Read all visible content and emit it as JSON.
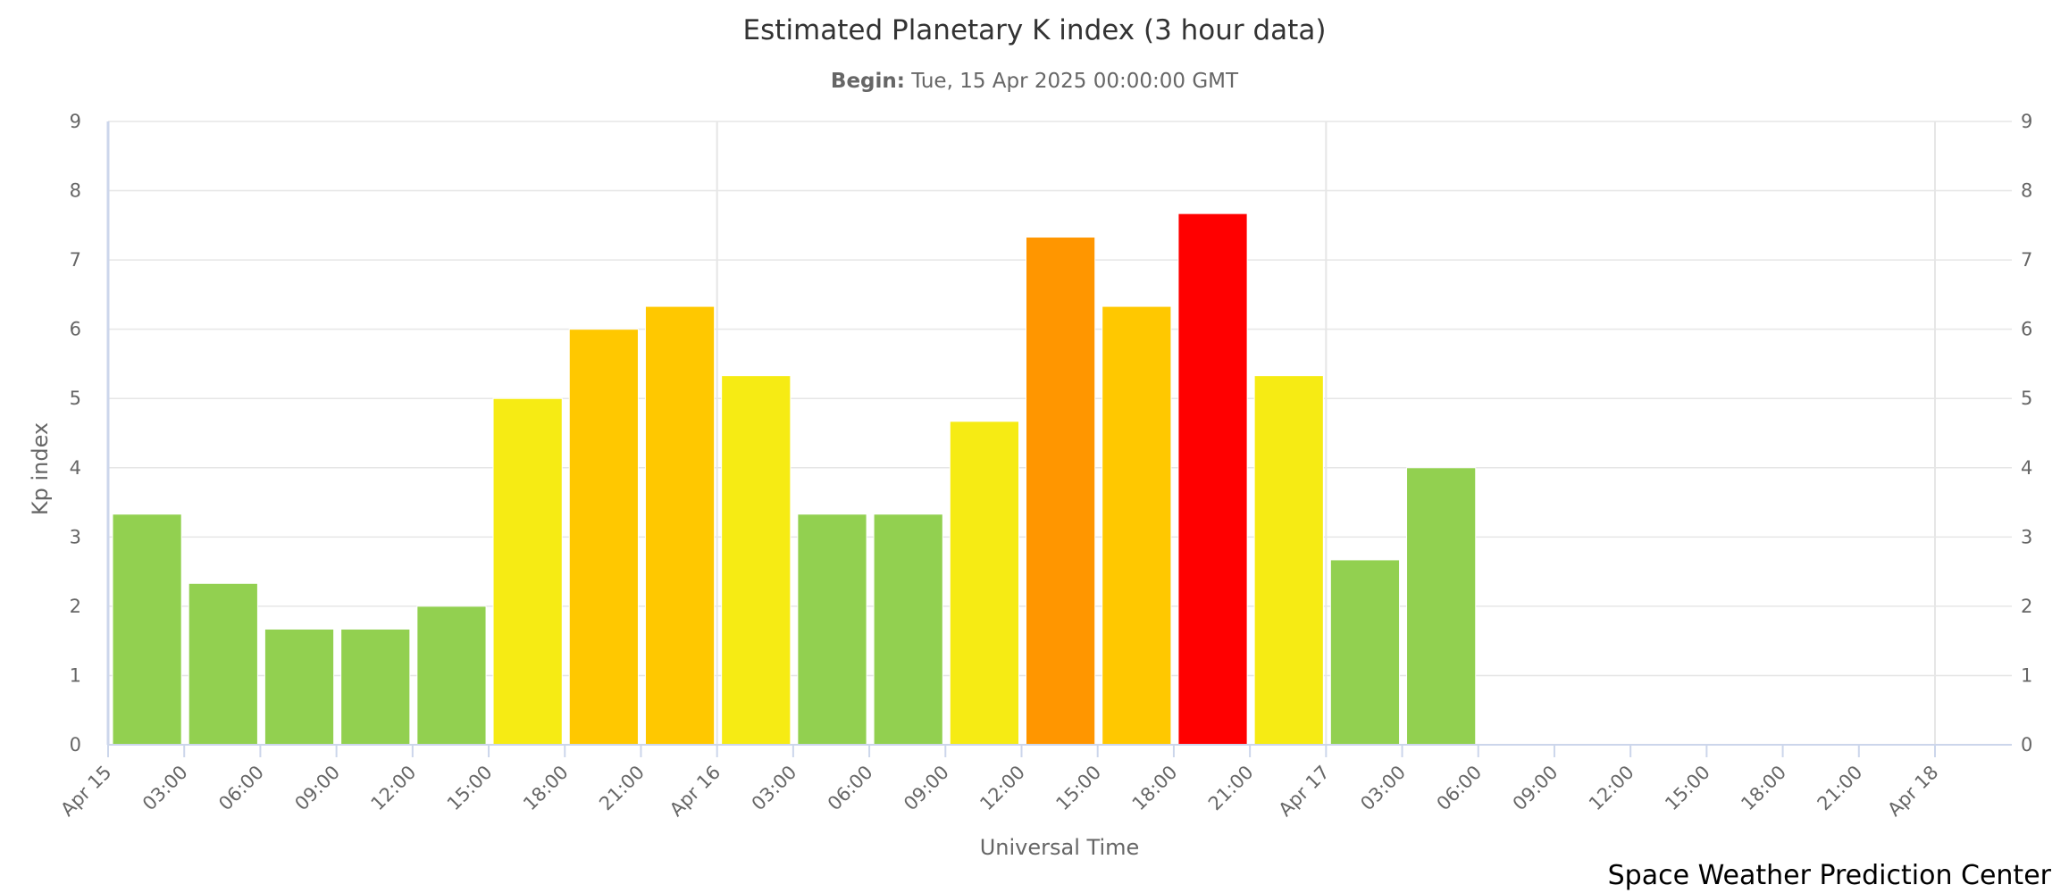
{
  "chart_data": {
    "type": "bar",
    "title": "Estimated Planetary K index (3 hour data)",
    "subtitle_label": "Begin:",
    "subtitle_value": "Tue, 15 Apr 2025 00:00:00 GMT",
    "xlabel": "Universal Time",
    "ylabel": "Kp index",
    "ylim": [
      0,
      9
    ],
    "yticks": [
      "0",
      "1",
      "2",
      "3",
      "4",
      "5",
      "6",
      "7",
      "8",
      "9"
    ],
    "xticks": [
      "Apr 15",
      "03:00",
      "06:00",
      "09:00",
      "12:00",
      "15:00",
      "18:00",
      "21:00",
      "Apr 16",
      "03:00",
      "06:00",
      "09:00",
      "12:00",
      "15:00",
      "18:00",
      "21:00",
      "Apr 17",
      "03:00",
      "06:00",
      "09:00",
      "12:00",
      "15:00",
      "18:00",
      "21:00",
      "Apr 18"
    ],
    "values": [
      3.33,
      2.33,
      1.67,
      1.67,
      2.0,
      5.0,
      6.0,
      6.33,
      5.33,
      3.33,
      3.33,
      4.67,
      7.33,
      6.33,
      7.67,
      5.33,
      2.67,
      4.0
    ],
    "bar_colors": [
      "#92d050",
      "#92d050",
      "#92d050",
      "#92d050",
      "#92d050",
      "#f6eb14",
      "#ffc800",
      "#ffc800",
      "#f6eb14",
      "#92d050",
      "#92d050",
      "#f6eb14",
      "#ff9600",
      "#ffc800",
      "#ff0000",
      "#f6eb14",
      "#92d050",
      "#92d050"
    ],
    "grid": true,
    "credit": "Space Weather Prediction Center"
  }
}
